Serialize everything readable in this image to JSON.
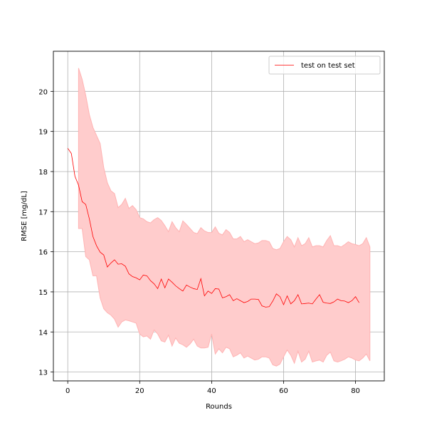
{
  "chart_data": {
    "type": "line",
    "title": "",
    "xlabel": "Rounds",
    "ylabel": "RMSE [mg/dL]",
    "xlim": [
      -4,
      88
    ],
    "ylim": [
      12.78,
      21.0
    ],
    "xticks": [
      0,
      20,
      40,
      60,
      80
    ],
    "yticks": [
      13,
      14,
      15,
      16,
      17,
      18,
      19,
      20
    ],
    "grid": true,
    "legend_position": "top-right",
    "colors": {
      "line": "#ff0000",
      "band": "#ffcccc",
      "band_edge": "#ffb3b3",
      "grid": "#b0b0b0"
    },
    "series": [
      {
        "name": "test on test set",
        "x": [
          0,
          1,
          2,
          3,
          4,
          5,
          6,
          7,
          8,
          9,
          10,
          11,
          12,
          13,
          14,
          15,
          16,
          17,
          18,
          19,
          20,
          21,
          22,
          23,
          24,
          25,
          26,
          27,
          28,
          29,
          30,
          31,
          32,
          33,
          34,
          35,
          36,
          37,
          38,
          39,
          40,
          41,
          42,
          43,
          44,
          45,
          46,
          47,
          48,
          49,
          50,
          51,
          52,
          53,
          54,
          55,
          56,
          57,
          58,
          59,
          60,
          61,
          62,
          63,
          64,
          65,
          66,
          67,
          68,
          69,
          70,
          71,
          72,
          73,
          74,
          75,
          76,
          77,
          78,
          79,
          80,
          81
        ],
        "y": [
          18.58,
          18.45,
          17.88,
          17.66,
          17.25,
          17.18,
          16.82,
          16.38,
          16.15,
          15.99,
          15.92,
          15.62,
          15.72,
          15.8,
          15.69,
          15.7,
          15.64,
          15.45,
          15.38,
          15.35,
          15.3,
          15.42,
          15.4,
          15.28,
          15.2,
          15.08,
          15.32,
          15.1,
          15.32,
          15.24,
          15.15,
          15.08,
          15.02,
          15.17,
          15.12,
          15.08,
          15.06,
          15.33,
          14.9,
          15.02,
          14.96,
          15.08,
          15.07,
          14.85,
          14.88,
          14.93,
          14.78,
          14.83,
          14.78,
          14.73,
          14.76,
          14.82,
          14.82,
          14.81,
          14.65,
          14.62,
          14.63,
          14.77,
          14.95,
          14.88,
          14.68,
          14.9,
          14.7,
          14.78,
          14.93,
          14.7,
          14.71,
          14.72,
          14.7,
          14.82,
          14.93,
          14.74,
          14.72,
          14.71,
          14.75,
          14.82,
          14.78,
          14.77,
          14.73,
          14.78,
          14.88,
          14.73
        ]
      }
    ],
    "band": {
      "x": [
        3,
        4,
        5,
        6,
        7,
        8,
        9,
        10,
        11,
        12,
        13,
        14,
        15,
        16,
        17,
        18,
        19,
        20,
        21,
        22,
        23,
        24,
        25,
        26,
        27,
        28,
        29,
        30,
        31,
        32,
        33,
        34,
        35,
        36,
        37,
        38,
        39,
        40,
        41,
        42,
        43,
        44,
        45,
        46,
        47,
        48,
        49,
        50,
        51,
        52,
        53,
        54,
        55,
        56,
        57,
        58,
        59,
        60,
        61,
        62,
        63,
        64,
        65,
        66,
        67,
        68,
        69,
        70,
        71,
        72,
        73,
        74,
        75,
        76,
        77,
        78,
        79,
        80,
        81,
        82,
        83,
        84
      ],
      "upper": [
        20.58,
        20.3,
        19.9,
        19.42,
        19.1,
        18.9,
        18.7,
        18.1,
        17.72,
        17.52,
        17.45,
        17.1,
        17.18,
        17.33,
        17.08,
        17.15,
        17.05,
        16.85,
        16.82,
        16.75,
        16.72,
        16.8,
        16.85,
        16.78,
        16.65,
        16.5,
        16.75,
        16.6,
        16.5,
        16.77,
        16.68,
        16.58,
        16.48,
        16.45,
        16.6,
        16.52,
        16.48,
        16.48,
        16.62,
        16.46,
        16.42,
        16.55,
        16.48,
        16.32,
        16.32,
        16.38,
        16.25,
        16.3,
        16.25,
        16.2,
        16.22,
        16.28,
        16.28,
        16.25,
        16.08,
        16.05,
        16.08,
        16.25,
        16.38,
        16.3,
        16.12,
        16.35,
        16.15,
        16.2,
        16.35,
        16.12,
        16.15,
        16.15,
        16.12,
        16.28,
        16.4,
        16.15,
        16.15,
        16.12,
        16.18,
        16.25,
        16.2,
        16.18,
        16.15,
        16.2,
        16.35,
        16.12
      ],
      "lower": [
        16.58,
        16.58,
        15.88,
        15.8,
        15.4,
        15.4,
        14.85,
        14.58,
        14.48,
        14.42,
        14.32,
        14.12,
        14.25,
        14.3,
        14.28,
        14.25,
        14.22,
        13.95,
        13.88,
        13.9,
        13.82,
        14.05,
        13.95,
        13.78,
        13.75,
        13.92,
        13.65,
        13.85,
        13.72,
        13.68,
        13.62,
        13.7,
        13.82,
        13.65,
        13.6,
        13.6,
        13.62,
        13.95,
        13.45,
        13.58,
        13.48,
        13.62,
        13.58,
        13.38,
        13.42,
        13.48,
        13.35,
        13.4,
        13.35,
        13.3,
        13.32,
        13.38,
        13.38,
        13.35,
        13.18,
        13.15,
        13.2,
        13.38,
        13.55,
        13.42,
        13.22,
        13.52,
        13.25,
        13.32,
        13.52,
        13.25,
        13.28,
        13.3,
        13.25,
        13.42,
        13.5,
        13.28,
        13.25,
        13.28,
        13.32,
        13.38,
        13.35,
        13.3,
        13.28,
        13.35,
        13.45,
        13.28
      ]
    }
  }
}
